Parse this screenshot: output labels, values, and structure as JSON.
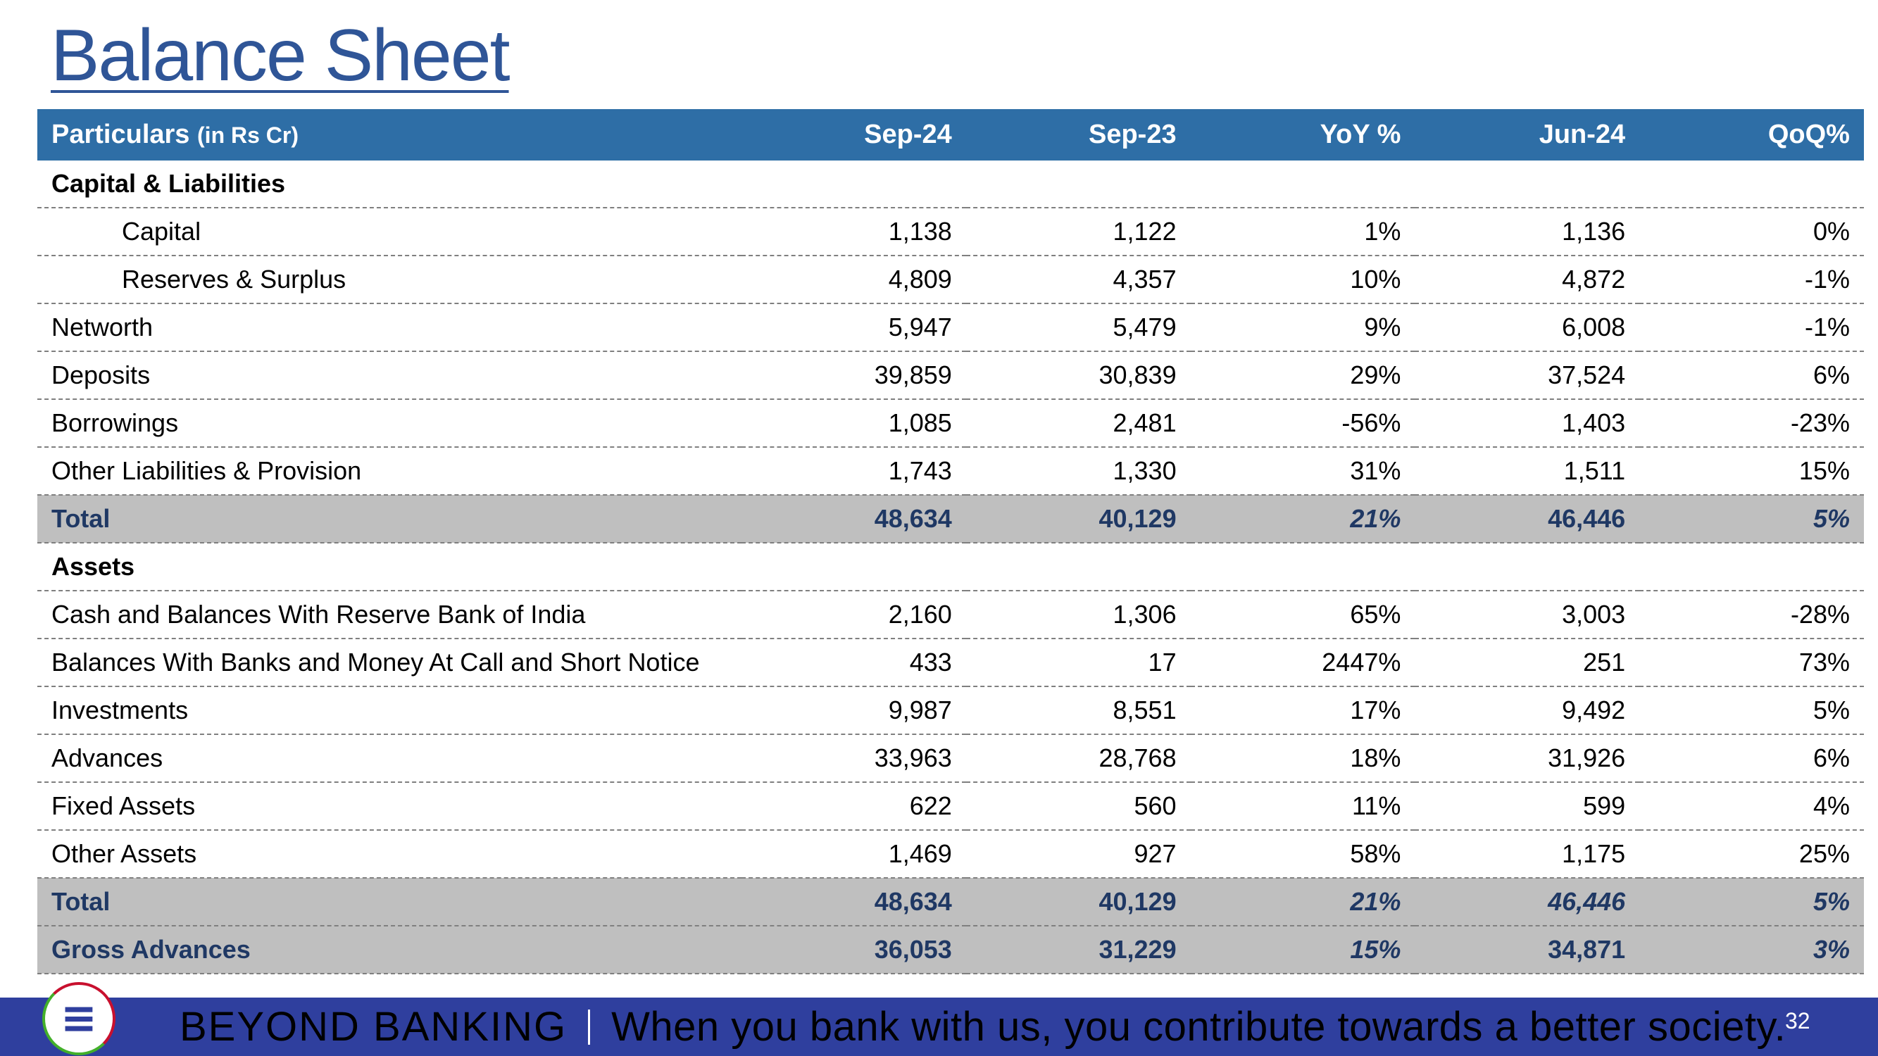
{
  "title": "Balance Sheet",
  "table": {
    "header": {
      "particulars": "Particulars",
      "unit": "(in Rs Cr)",
      "columns": [
        "Sep-24",
        "Sep-23",
        "YoY %",
        "Jun-24",
        "QoQ%"
      ]
    },
    "rows": [
      {
        "label": "Capital & Liabilities",
        "type": "section",
        "values": [
          "",
          "",
          "",
          "",
          ""
        ]
      },
      {
        "label": "Capital",
        "type": "indent",
        "values": [
          "1,138",
          "1,122",
          "1%",
          "1,136",
          "0%"
        ]
      },
      {
        "label": "Reserves & Surplus",
        "type": "indent",
        "values": [
          "4,809",
          "4,357",
          "10%",
          "4,872",
          "-1%"
        ]
      },
      {
        "label": "Networth",
        "type": "normal",
        "values": [
          "5,947",
          "5,479",
          "9%",
          "6,008",
          "-1%"
        ]
      },
      {
        "label": "Deposits",
        "type": "normal",
        "values": [
          "39,859",
          "30,839",
          "29%",
          "37,524",
          "6%"
        ]
      },
      {
        "label": "Borrowings",
        "type": "normal",
        "values": [
          "1,085",
          "2,481",
          "-56%",
          "1,403",
          "-23%"
        ]
      },
      {
        "label": "Other Liabilities & Provision",
        "type": "normal",
        "values": [
          "1,743",
          "1,330",
          "31%",
          "1,511",
          "15%"
        ]
      },
      {
        "label": "Total",
        "type": "total",
        "values": [
          "48,634",
          "40,129",
          "21%",
          "46,446",
          "5%"
        ]
      },
      {
        "label": "Assets",
        "type": "section",
        "values": [
          "",
          "",
          "",
          "",
          ""
        ]
      },
      {
        "label": "Cash and Balances With Reserve Bank of India",
        "type": "normal",
        "values": [
          "2,160",
          "1,306",
          "65%",
          "3,003",
          "-28%"
        ]
      },
      {
        "label": "Balances With Banks and Money At Call and Short Notice",
        "type": "normal",
        "values": [
          "433",
          "17",
          "2447%",
          "251",
          "73%"
        ]
      },
      {
        "label": "Investments",
        "type": "normal",
        "values": [
          "9,987",
          "8,551",
          "17%",
          "9,492",
          "5%"
        ]
      },
      {
        "label": "Advances",
        "type": "normal",
        "values": [
          "33,963",
          "28,768",
          "18%",
          "31,926",
          "6%"
        ]
      },
      {
        "label": "Fixed Assets",
        "type": "normal",
        "values": [
          "622",
          "560",
          "11%",
          "599",
          "4%"
        ]
      },
      {
        "label": "Other Assets",
        "type": "normal",
        "values": [
          "1,469",
          "927",
          "58%",
          "1,175",
          "25%"
        ]
      },
      {
        "label": "Total",
        "type": "total",
        "values": [
          "48,634",
          "40,129",
          "21%",
          "46,446",
          "5%"
        ]
      },
      {
        "label": "Gross Advances",
        "type": "total",
        "values": [
          "36,053",
          "31,229",
          "15%",
          "34,871",
          "3%"
        ]
      }
    ]
  },
  "footer": {
    "brand": "BEYOND BANKING",
    "message": "When you bank with us, you contribute towards a better society.",
    "page_number": "32",
    "logo_icon": "bank-logo-icon"
  },
  "colors": {
    "title": "#2f5597",
    "header_bg": "#2e6ea6",
    "total_bg": "#bfbfbf",
    "total_text": "#1f3864",
    "footer_bg": "#2f3f9e"
  }
}
